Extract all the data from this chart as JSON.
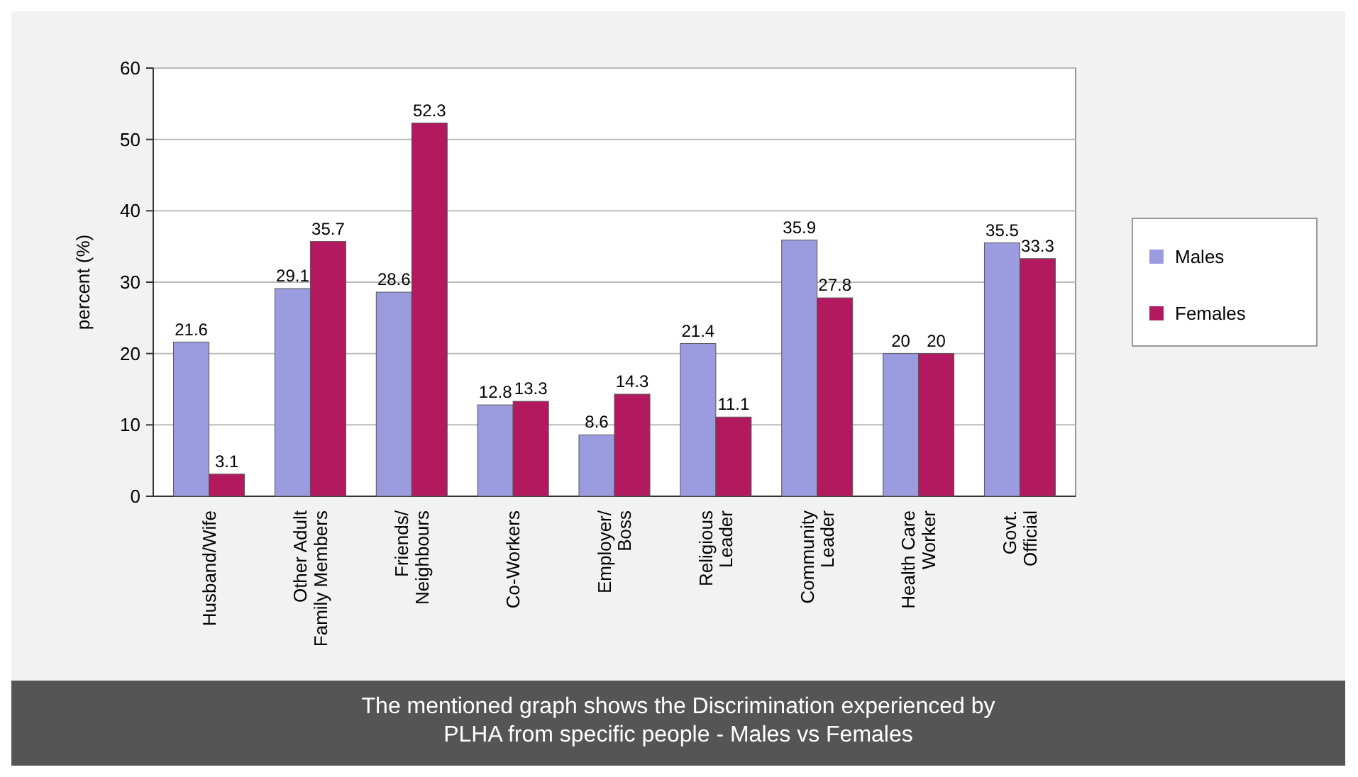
{
  "chart_data": {
    "type": "bar",
    "ylabel": "percent (%)",
    "categories": [
      "Husband/Wife",
      "Other Adult\nFamily Members",
      "Friends/\nNeighbours",
      "Co-Workers",
      "Employer/\nBoss",
      "Religious\nLeader",
      "Community\nLeader",
      "Health Care\nWorker",
      "Govt.\nOfficial"
    ],
    "series": [
      {
        "name": "Males",
        "color": "#9b9be0",
        "values": [
          21.6,
          29.1,
          28.6,
          12.8,
          8.6,
          21.4,
          35.9,
          20,
          35.5
        ]
      },
      {
        "name": "Females",
        "color": "#b3195e",
        "values": [
          3.1,
          35.7,
          52.3,
          13.3,
          14.3,
          11.1,
          27.8,
          20,
          33.3
        ]
      }
    ],
    "ylim": [
      0,
      60
    ],
    "yticks": [
      0,
      10,
      20,
      30,
      40,
      50,
      60
    ],
    "grid": "y",
    "legend": "right",
    "data_labels": true,
    "annotations": [
      "The mentioned graph shows the Discrimination experienced by\nPLHA from specific people - Males vs Females"
    ]
  }
}
